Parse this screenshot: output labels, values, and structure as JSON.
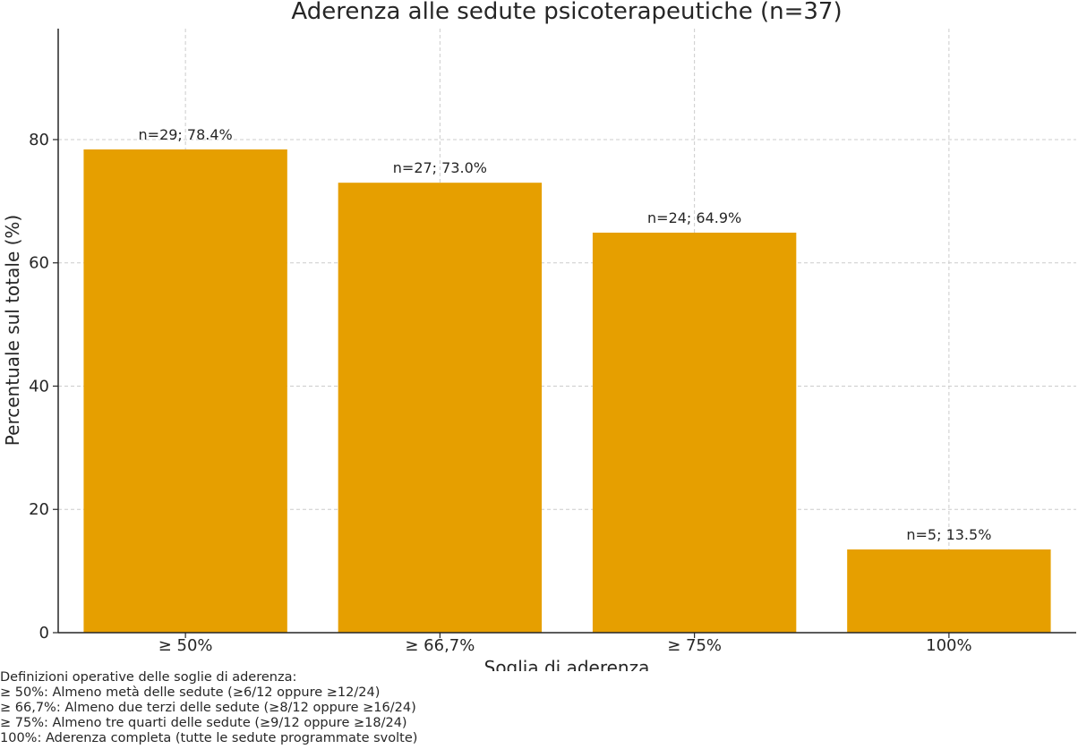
{
  "chart_data": {
    "type": "bar",
    "title": "Aderenza alle sedute psicoterapeutiche (n=37)",
    "xlabel": "Soglia di aderenza",
    "ylabel": "Percentuale sul totale (%)",
    "categories": [
      "≥ 50%",
      "≥ 66,7%",
      "≥ 75%",
      "100%"
    ],
    "values": [
      78.4,
      73.0,
      64.9,
      13.5
    ],
    "data_labels": [
      "n=29; 78.4%",
      "n=27; 73.0%",
      "n=24; 64.9%",
      "n=5; 13.5%"
    ],
    "ylim": [
      0,
      98
    ],
    "yticks": [
      0,
      20,
      40,
      60,
      80
    ],
    "grid": true,
    "bar_color": "#E69F00"
  },
  "notes": {
    "heading": "Definizioni operative delle soglie di aderenza:",
    "lines": [
      "≥ 50%: Almeno metà delle sedute (≥6/12 oppure ≥12/24)",
      "≥ 66,7%: Almeno due terzi delle sedute (≥8/12 oppure ≥16/24)",
      "≥ 75%: Almeno tre quarti delle sedute (≥9/12 oppure ≥18/24)",
      "100%: Aderenza completa (tutte le sedute programmate svolte)"
    ]
  }
}
